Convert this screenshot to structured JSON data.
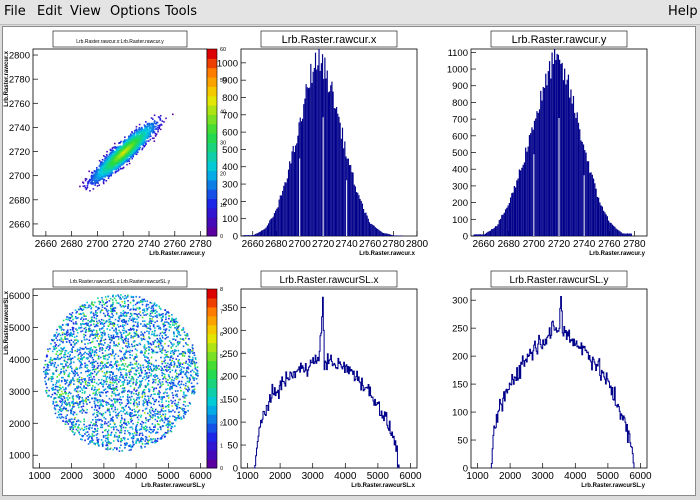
{
  "menu": {
    "file": "File",
    "edit": "Edit",
    "view": "View",
    "options": "Options",
    "tools": "Tools",
    "help": "Help"
  },
  "chart_data": [
    {
      "type": "heatmap",
      "title": "Lrb.Raster.rawcur.x:Lrb.Raster.rawcur.y",
      "xlabel": "Lrb.Raster.rawcur.y",
      "ylabel": "Lrb.Raster.rawcur.x",
      "xlim": [
        2650,
        2785
      ],
      "ylim": [
        2650,
        2805
      ],
      "x_ticks": [
        "2660",
        "2680",
        "2700",
        "2720",
        "2740",
        "2760",
        "2780"
      ],
      "y_ticks": [
        "2660",
        "2680",
        "2700",
        "2720",
        "2740",
        "2760",
        "2780",
        "2800"
      ],
      "colorbar_ticks": [
        "0",
        "10",
        "20",
        "30",
        "40",
        "50",
        "60"
      ],
      "colorbar_max": 60,
      "distribution": "elongated diagonal ellipse centered near (2720, 2720), dense core"
    },
    {
      "type": "bar",
      "title": "Lrb.Raster.rawcur.x",
      "xlabel": "Lrb.Raster.rawcur.x",
      "xlim": [
        2650,
        2800
      ],
      "ylim": [
        0,
        1080
      ],
      "x_ticks": [
        "2660",
        "2680",
        "2700",
        "2720",
        "2740",
        "2760",
        "2780",
        "2800"
      ],
      "y_ticks": [
        "0",
        "100",
        "200",
        "300",
        "400",
        "500",
        "600",
        "700",
        "800",
        "900",
        "1000"
      ],
      "x": [
        2660,
        2670,
        2680,
        2690,
        2700,
        2705,
        2710,
        2715,
        2720,
        2725,
        2730,
        2740,
        2750,
        2760,
        2770,
        2780
      ],
      "values": [
        5,
        40,
        150,
        380,
        640,
        820,
        960,
        1020,
        980,
        880,
        760,
        460,
        220,
        70,
        20,
        3
      ]
    },
    {
      "type": "bar",
      "title": "Lrb.Raster.rawcur.y",
      "xlabel": "Lrb.Raster.rawcur.y",
      "xlim": [
        2650,
        2790
      ],
      "ylim": [
        0,
        1120
      ],
      "x_ticks": [
        "2660",
        "2680",
        "2700",
        "2720",
        "2740",
        "2760",
        "2780"
      ],
      "y_ticks": [
        "0",
        "100",
        "200",
        "300",
        "400",
        "500",
        "600",
        "700",
        "800",
        "900",
        "1000",
        "1100"
      ],
      "x": [
        2660,
        2670,
        2680,
        2690,
        2700,
        2710,
        2715,
        2720,
        2725,
        2730,
        2740,
        2750,
        2760,
        2770
      ],
      "values": [
        10,
        60,
        200,
        420,
        700,
        930,
        1080,
        1010,
        950,
        820,
        520,
        240,
        80,
        15
      ]
    },
    {
      "type": "heatmap",
      "title": "Lrb.Raster.rawcurSL.x:Lrb.Raster.rawcurSL.y",
      "xlabel": "Lrb.Raster.rawcurSL.y",
      "ylabel": "Lrb.Raster.rawcurSL.x",
      "xlim": [
        800,
        6200
      ],
      "ylim": [
        600,
        6200
      ],
      "x_ticks": [
        "1000",
        "2000",
        "3000",
        "4000",
        "5000",
        "6000"
      ],
      "y_ticks": [
        "1000",
        "2000",
        "3000",
        "4000",
        "5000",
        "6000"
      ],
      "colorbar_ticks": [
        "0",
        "1",
        "2",
        "3",
        "4",
        "5",
        "6",
        "7",
        "8"
      ],
      "colorbar_max": 8,
      "distribution": "uniform filled disc centered near (3500, 3600), radius about 2400"
    },
    {
      "type": "line",
      "title": "Lrb.Raster.rawcurSL.x",
      "xlabel": "Lrb.Raster.rawcurSL.x",
      "xlim": [
        800,
        6200
      ],
      "ylim": [
        0,
        390
      ],
      "x_ticks": [
        "1000",
        "2000",
        "3000",
        "4000",
        "5000",
        "6000"
      ],
      "y_ticks": [
        "0",
        "50",
        "100",
        "150",
        "200",
        "250",
        "300",
        "350"
      ],
      "x": [
        1200,
        1350,
        1500,
        1700,
        2000,
        2300,
        2600,
        2900,
        3200,
        3300,
        3350,
        3400,
        3600,
        3900,
        4200,
        4500,
        4800,
        5100,
        5300,
        5500,
        5650
      ],
      "values": [
        0,
        80,
        120,
        150,
        180,
        200,
        215,
        225,
        240,
        370,
        220,
        235,
        230,
        220,
        210,
        185,
        160,
        125,
        95,
        60,
        0
      ]
    },
    {
      "type": "line",
      "title": "Lrb.Raster.rawcurSL.y",
      "xlabel": "Lrb.Raster.rawcurSL.y",
      "xlim": [
        800,
        6200
      ],
      "ylim": [
        0,
        320
      ],
      "x_ticks": [
        "1000",
        "2000",
        "3000",
        "4000",
        "5000",
        "6000"
      ],
      "y_ticks": [
        "0",
        "50",
        "100",
        "150",
        "200",
        "250",
        "300"
      ],
      "x": [
        1400,
        1550,
        1700,
        2000,
        2400,
        2800,
        3200,
        3500,
        3550,
        3600,
        3800,
        4200,
        4600,
        5000,
        5400,
        5700,
        5800
      ],
      "values": [
        0,
        80,
        110,
        150,
        190,
        220,
        240,
        250,
        310,
        245,
        235,
        215,
        190,
        150,
        100,
        40,
        0
      ]
    }
  ]
}
